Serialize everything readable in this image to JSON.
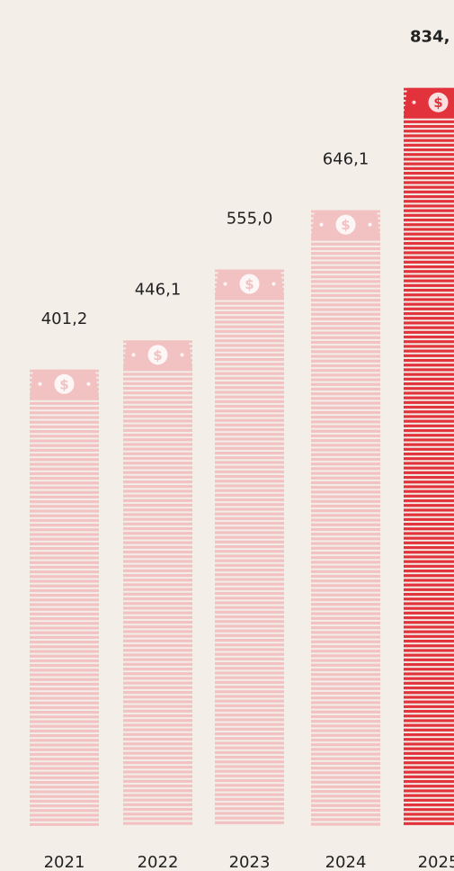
{
  "chart_data": {
    "type": "bar",
    "categories": [
      "2021",
      "2022",
      "2023",
      "2024",
      "2025"
    ],
    "values": [
      401.2,
      446.1,
      555.0,
      646.1,
      834
    ],
    "value_labels": [
      "401,2",
      "446,1",
      "555,0",
      "646,1",
      "834,"
    ],
    "colors": [
      "#f2c2c2",
      "#f2c2c2",
      "#f2c2c2",
      "#f2c2c2",
      "#e2323b"
    ],
    "ylim": [
      -300,
      900
    ]
  }
}
